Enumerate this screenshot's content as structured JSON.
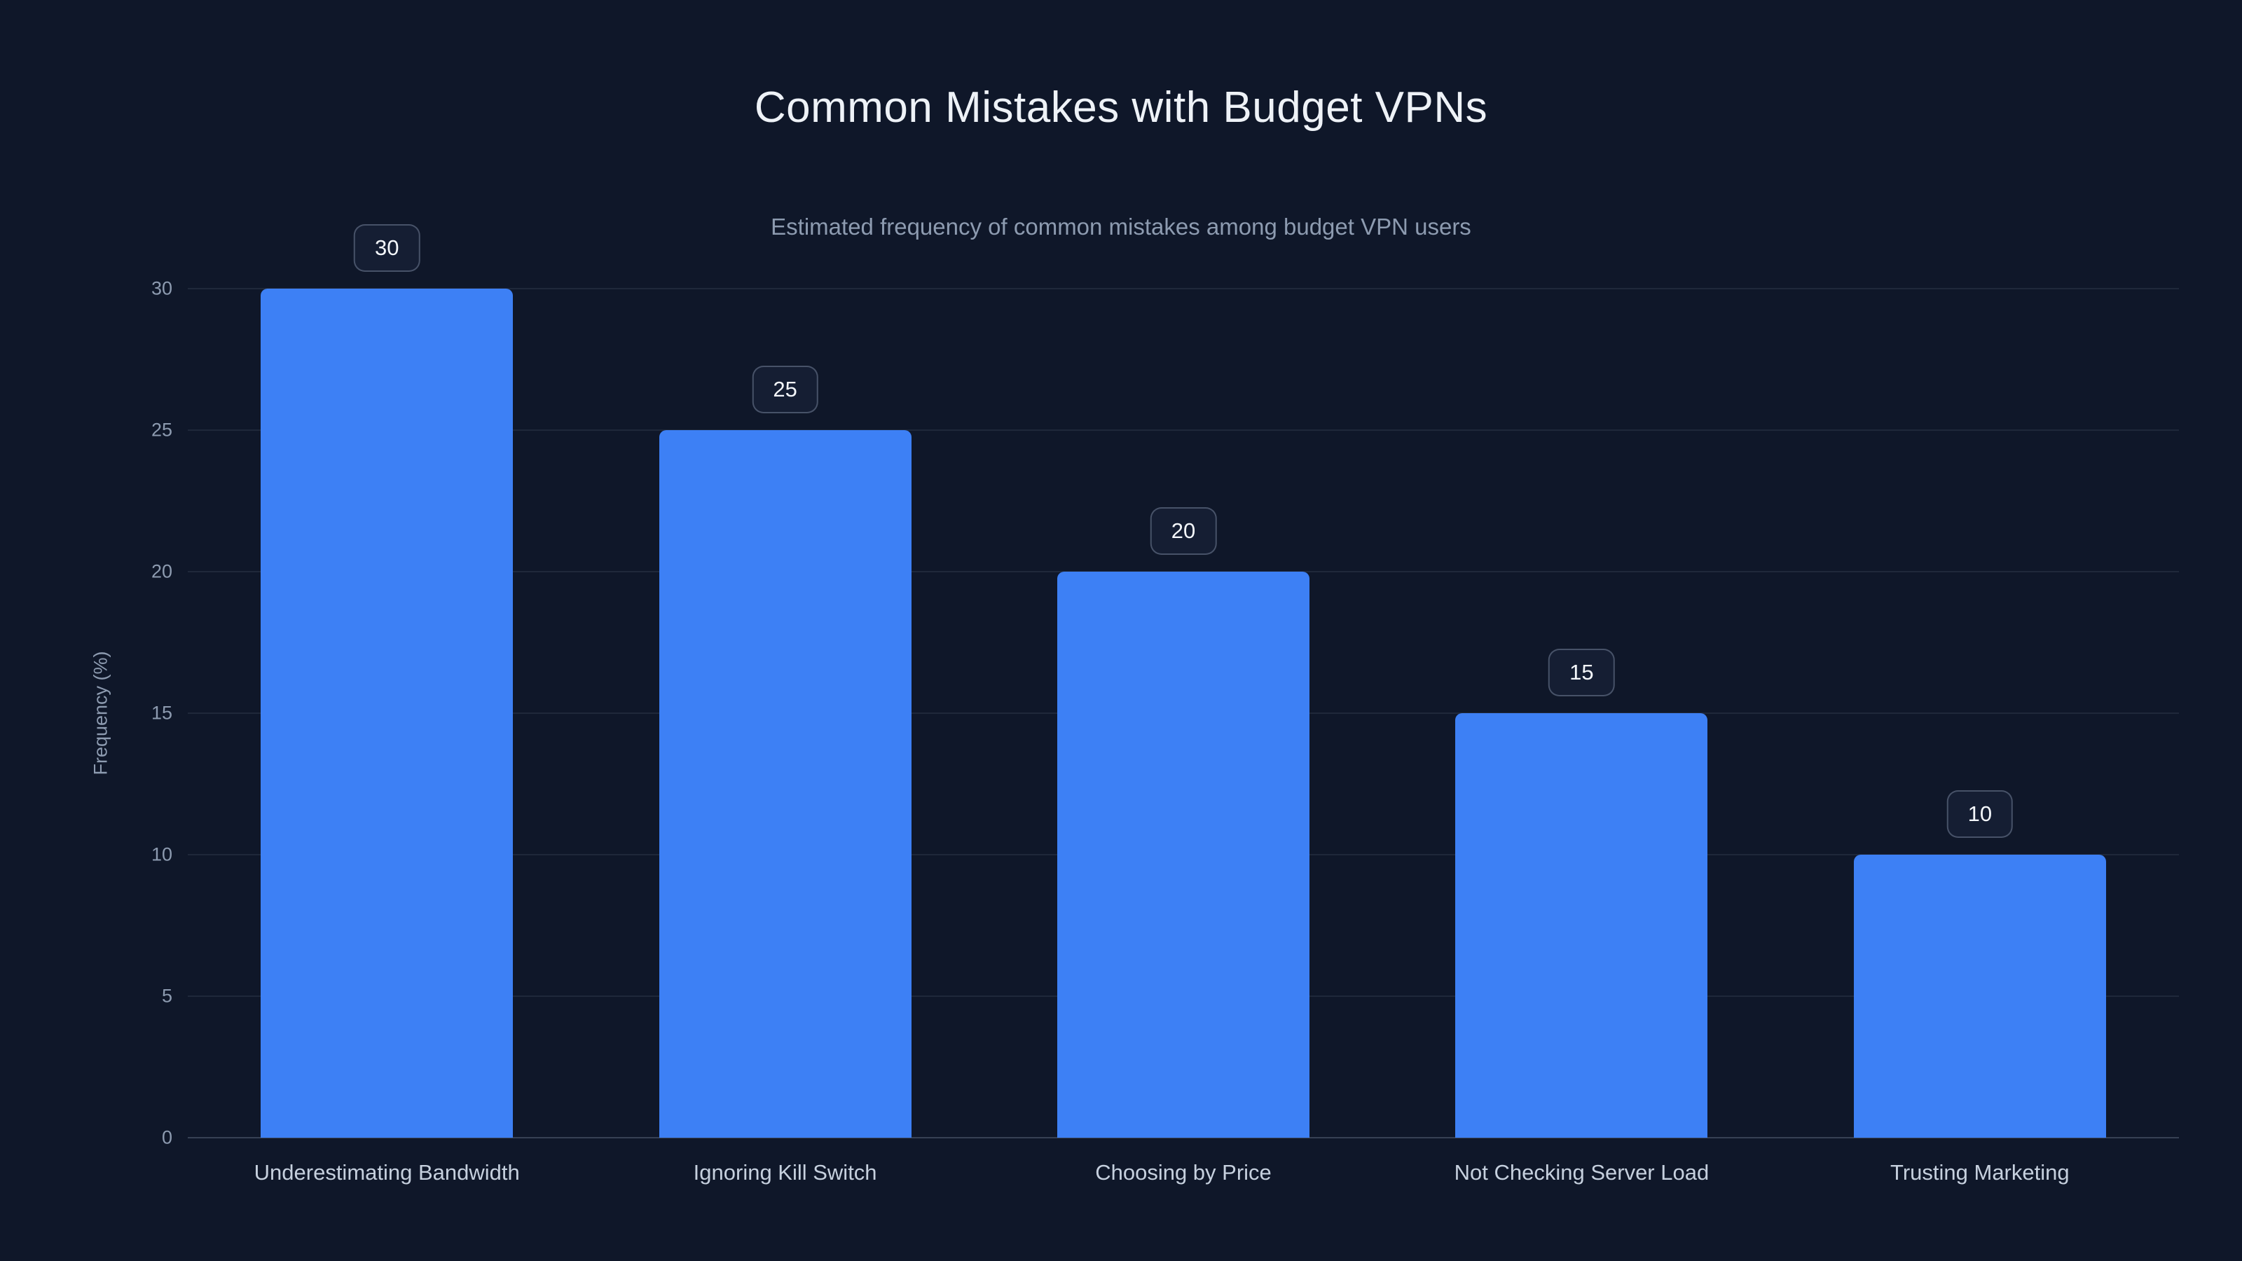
{
  "page": {
    "background_color": "#0f1729",
    "accent_color": "#3d80f5"
  },
  "chart_data": {
    "type": "bar",
    "title": "Common Mistakes with Budget VPNs",
    "subtitle": "Estimated frequency of common mistakes among budget VPN users",
    "categories": [
      "Underestimating Bandwidth",
      "Ignoring Kill Switch",
      "Choosing by Price",
      "Not Checking Server Load",
      "Trusting Marketing"
    ],
    "values": [
      30,
      25,
      20,
      15,
      10
    ],
    "value_labels": [
      "30",
      "25",
      "20",
      "15",
      "10"
    ],
    "xlabel": "",
    "ylabel": "Frequency (%)",
    "ylim": [
      0,
      30
    ],
    "yticks": [
      0,
      5,
      10,
      15,
      20,
      25,
      30
    ],
    "grid": true,
    "legend": false,
    "bar_color": "#3d80f5"
  }
}
